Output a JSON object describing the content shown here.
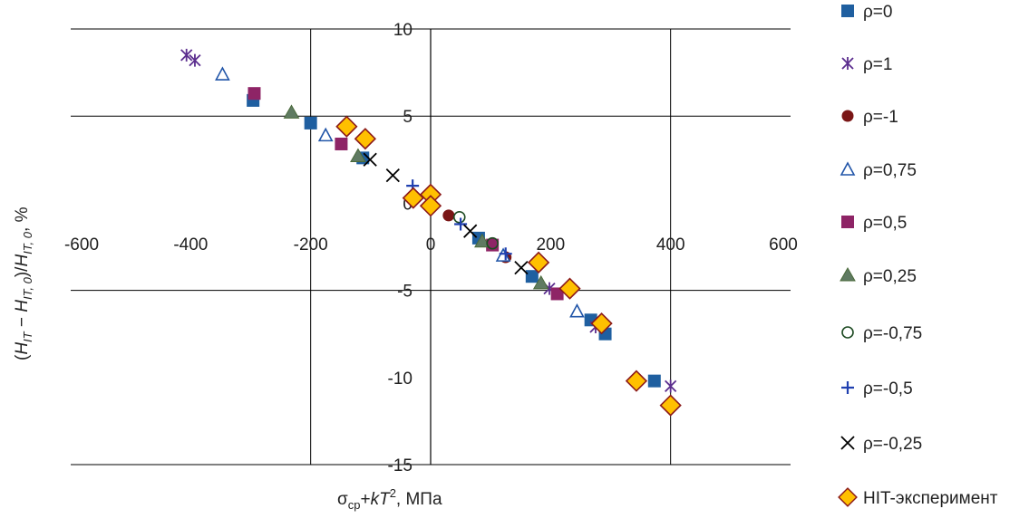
{
  "chart_data": {
    "type": "scatter",
    "title": "",
    "xlabel": {
      "sigma": "σ",
      "sub": "cp",
      "plus": "+",
      "k": "k",
      "T": "T",
      "sup": "2",
      "unit": ", МПа"
    },
    "ylabel": {
      "open": "(",
      "h1": "H",
      "s1": "IT",
      "minus": " − ",
      "h2": "H",
      "s2": "IT, 0",
      "mid": ")/",
      "h3": "H",
      "s3": "IT, 0",
      "unit": ", %"
    },
    "xlim": [
      -600,
      600
    ],
    "ylim": [
      -15,
      10
    ],
    "xticks": [
      "-600",
      "-400",
      "-200",
      "0",
      "200",
      "400",
      "600"
    ],
    "xtick_values": [
      -600,
      -400,
      -200,
      0,
      200,
      400,
      600
    ],
    "yticks": [
      "10",
      "5",
      "0",
      "-5",
      "-10",
      "-15"
    ],
    "ytick_values": [
      10,
      5,
      0,
      -5,
      -10,
      -15
    ],
    "grid_x": [
      -200,
      400
    ],
    "grid_y": [
      10,
      5,
      -5,
      -15
    ],
    "legend_position": "right",
    "series": [
      {
        "name": "ρ=0",
        "marker": "square",
        "color": "#1f5fa0",
        "points": [
          [
            -296,
            5.9
          ],
          [
            -200,
            4.6
          ],
          [
            -113,
            2.6
          ],
          [
            80,
            -2.0
          ],
          [
            169,
            -4.2
          ],
          [
            267,
            -6.7
          ],
          [
            291,
            -7.5
          ],
          [
            373,
            -10.2
          ]
        ]
      },
      {
        "name": "ρ=1",
        "marker": "asterisk",
        "color": "#5b2d8e",
        "points": [
          [
            -407,
            8.5
          ],
          [
            -393,
            8.2
          ],
          [
            198,
            -4.9
          ],
          [
            275,
            -7.1
          ],
          [
            400,
            -10.5
          ]
        ]
      },
      {
        "name": "ρ=-1",
        "marker": "circle",
        "color": "#7a1616",
        "points": [
          [
            30,
            -0.7
          ],
          [
            103,
            -2.3
          ],
          [
            125,
            -3.1
          ]
        ]
      },
      {
        "name": "ρ=0,75",
        "marker": "triangle-open",
        "color": "#2155a8",
        "points": [
          [
            -347,
            7.4
          ],
          [
            -175,
            3.9
          ],
          [
            121,
            -3.0
          ],
          [
            244,
            -6.2
          ]
        ]
      },
      {
        "name": "ρ=0,5",
        "marker": "square",
        "color": "#8e2466",
        "points": [
          [
            -294,
            6.3
          ],
          [
            -149,
            3.4
          ],
          [
            103,
            -2.4
          ],
          [
            211,
            -5.2
          ]
        ]
      },
      {
        "name": "ρ=0,25",
        "marker": "triangle",
        "color": "#5f7a62",
        "points": [
          [
            -232,
            5.2
          ],
          [
            -121,
            2.7
          ],
          [
            86,
            -2.2
          ],
          [
            184,
            -4.6
          ]
        ]
      },
      {
        "name": "ρ=-0,75",
        "marker": "circle-open",
        "color": "#1d4a22",
        "points": [
          [
            48,
            -0.8
          ],
          [
            103,
            -2.3
          ]
        ]
      },
      {
        "name": "ρ=-0,5",
        "marker": "plus",
        "color": "#2040b0",
        "points": [
          [
            -30,
            1.0
          ],
          [
            50,
            -1.2
          ],
          [
            125,
            -2.9
          ]
        ]
      },
      {
        "name": "ρ=-0,25",
        "marker": "x",
        "color": "#000000",
        "points": [
          [
            -101,
            2.5
          ],
          [
            -63,
            1.6
          ],
          [
            66,
            -1.6
          ],
          [
            151,
            -3.7
          ]
        ]
      },
      {
        "name": "HIT-эксперимент",
        "marker": "diamond",
        "color": "#ffc000",
        "stroke": "#8b1a1a",
        "points": [
          [
            -140,
            4.4
          ],
          [
            -109,
            3.7
          ],
          [
            -29,
            0.3
          ],
          [
            0,
            0.5
          ],
          [
            0,
            -0.15
          ],
          [
            180,
            -3.4
          ],
          [
            232,
            -4.9
          ],
          [
            285,
            -6.9
          ],
          [
            343,
            -10.2
          ],
          [
            400,
            -11.6
          ]
        ]
      }
    ]
  }
}
